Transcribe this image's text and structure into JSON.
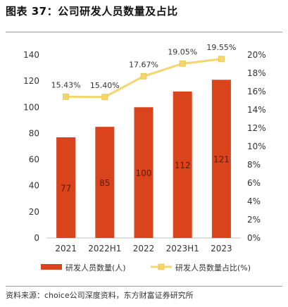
{
  "title": "图表 37：公司研发人员数量及占比",
  "source": "资料来源：choice公司深度资料，东方财富证券研究所",
  "colors": {
    "bar": "#d9441c",
    "line": "#f5d66e",
    "marker": "#f5d66e",
    "axis_text": "#333333"
  },
  "chart_data": {
    "type": "bar",
    "categories": [
      "2021",
      "2022H1",
      "2022",
      "2023H1",
      "2023"
    ],
    "series": [
      {
        "name": "研发人员数量(人)",
        "type": "bar",
        "axis": "left",
        "values": [
          77,
          85,
          100,
          112,
          121
        ],
        "labels": [
          "77",
          "85",
          "100",
          "112",
          "121"
        ]
      },
      {
        "name": "研发人员数量占比(%)",
        "type": "line",
        "axis": "right",
        "values": [
          15.43,
          15.4,
          17.67,
          19.05,
          19.55
        ],
        "labels": [
          "15.43%",
          "15.40%",
          "17.67%",
          "19.05%",
          "19.55%"
        ]
      }
    ],
    "y_left": {
      "lim": [
        0,
        140
      ],
      "ticks": [
        "0",
        "20",
        "40",
        "60",
        "80",
        "100",
        "120",
        "140"
      ]
    },
    "y_right": {
      "lim": [
        0,
        20
      ],
      "ticks": [
        "0%",
        "2%",
        "4%",
        "6%",
        "8%",
        "10%",
        "12%",
        "14%",
        "16%",
        "18%",
        "20%"
      ]
    },
    "grid": false,
    "legend_position": "bottom"
  }
}
